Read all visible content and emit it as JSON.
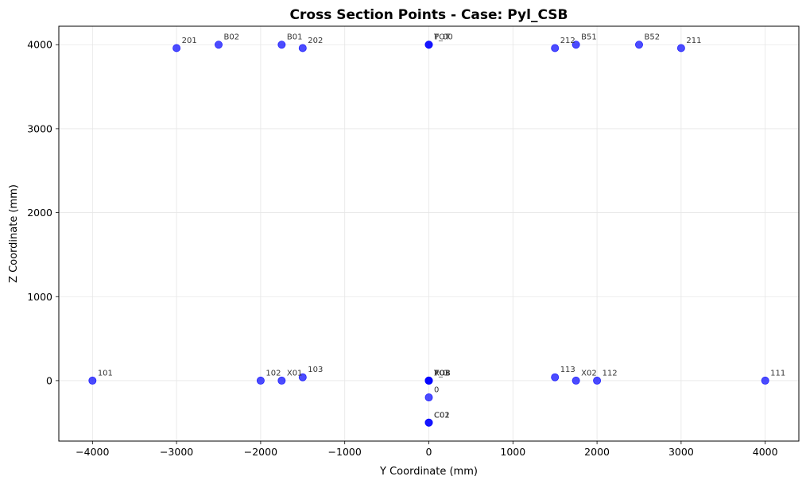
{
  "chart_data": {
    "type": "scatter",
    "title": "Cross Section Points - Case: Pyl_CSB",
    "xlabel": "Y Coordinate (mm)",
    "ylabel": "Z Coordinate (mm)",
    "xlim": [
      -4400,
      4400
    ],
    "ylim": [
      -720,
      4220
    ],
    "xticks": [
      -4000,
      -3000,
      -2000,
      -1000,
      0,
      1000,
      2000,
      3000,
      4000
    ],
    "yticks": [
      0,
      1000,
      2000,
      3000,
      4000
    ],
    "grid": true,
    "marker_color": "#0000ff",
    "points": [
      {
        "label": "201",
        "x": -3000,
        "y": 3960
      },
      {
        "label": "B02",
        "x": -2500,
        "y": 4000
      },
      {
        "label": "B01",
        "x": -1750,
        "y": 4000
      },
      {
        "label": "202",
        "x": -1500,
        "y": 3960
      },
      {
        "label": "P_00",
        "x": 0,
        "y": 4000
      },
      {
        "label": "TOT",
        "x": 0,
        "y": 4000
      },
      {
        "label": "212",
        "x": 1500,
        "y": 3960
      },
      {
        "label": "B51",
        "x": 1750,
        "y": 4000
      },
      {
        "label": "B52",
        "x": 2500,
        "y": 4000
      },
      {
        "label": "211",
        "x": 3000,
        "y": 3960
      },
      {
        "label": "101",
        "x": -4000,
        "y": 0
      },
      {
        "label": "102",
        "x": -2000,
        "y": 0
      },
      {
        "label": "X01",
        "x": -1750,
        "y": 0
      },
      {
        "label": "103",
        "x": -1500,
        "y": 40
      },
      {
        "label": "P_0",
        "x": 0,
        "y": 0
      },
      {
        "label": "TOB",
        "x": 0,
        "y": 0
      },
      {
        "label": "X03",
        "x": 0,
        "y": 0
      },
      {
        "label": "0",
        "x": 0,
        "y": -200
      },
      {
        "label": "C01",
        "x": 0,
        "y": -500
      },
      {
        "label": "C02",
        "x": 0,
        "y": -500
      },
      {
        "label": "113",
        "x": 1500,
        "y": 40
      },
      {
        "label": "X02",
        "x": 1750,
        "y": 0
      },
      {
        "label": "112",
        "x": 2000,
        "y": 0
      },
      {
        "label": "111",
        "x": 4000,
        "y": 0
      }
    ]
  }
}
